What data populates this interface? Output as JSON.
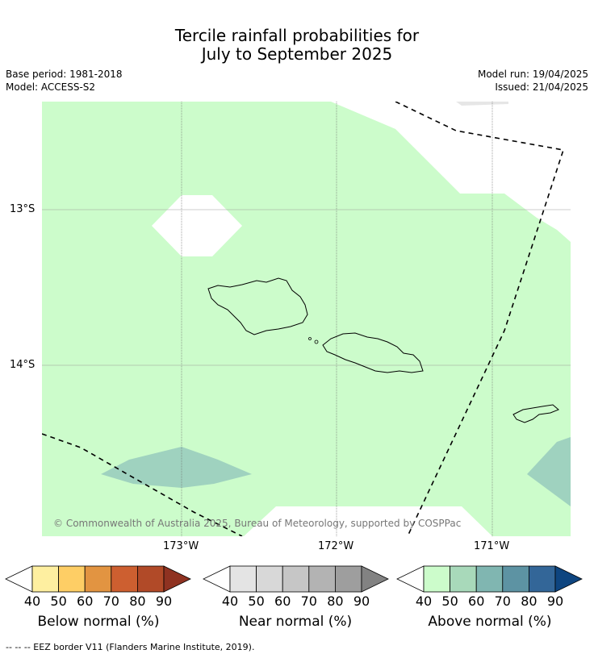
{
  "title": {
    "line1": "Tercile rainfall probabilities for",
    "line2": "July to September 2025"
  },
  "meta": {
    "base_period": "Base period: 1981-2018",
    "model": "Model: ACCESS-S2",
    "model_run": "Model run: 19/04/2025",
    "issued": "Issued: 21/04/2025"
  },
  "map": {
    "lat_labels": [
      "13°S",
      "14°S"
    ],
    "lon_labels": [
      "173°W",
      "172°W",
      "171°W"
    ],
    "copyright": "© Commonwealth of Australia 2025, Bureau of Meteorology, supported by COSPPac",
    "colors": {
      "above_40": "#ccfccb",
      "above_60": "#9fd2bf",
      "near_40": "#e4e4e4",
      "coast": "#000000"
    }
  },
  "colorbars": [
    {
      "title": "Below normal (%)",
      "ticks": [
        "40",
        "50",
        "60",
        "70",
        "80",
        "90"
      ],
      "colors": [
        "#feefa0",
        "#fece65",
        "#e29441",
        "#cd5f30",
        "#b14a28",
        "#8f3221"
      ]
    },
    {
      "title": "Near normal (%)",
      "ticks": [
        "40",
        "50",
        "60",
        "70",
        "80",
        "90"
      ],
      "colors": [
        "#e4e4e4",
        "#d8d8d8",
        "#c6c6c6",
        "#b3b3b3",
        "#9e9e9e",
        "#828282"
      ]
    },
    {
      "title": "Above normal (%)",
      "ticks": [
        "40",
        "50",
        "60",
        "70",
        "80",
        "90"
      ],
      "colors": [
        "#ccfccb",
        "#a8d9ba",
        "#80b6b1",
        "#5d93a3",
        "#336698",
        "#0e4580"
      ]
    }
  ],
  "footnote": "-- -- -- EEZ border V11 (Flanders Marine Institute, 2019)."
}
